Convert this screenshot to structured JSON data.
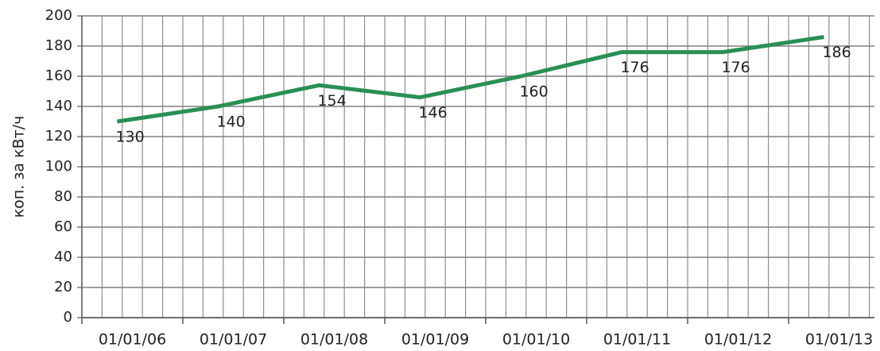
{
  "chart_data": {
    "type": "line",
    "y_label": "коп. за кВт/ч",
    "categories": [
      "01/01/06",
      "01/01/07",
      "01/01/08",
      "01/01/09",
      "01/01/10",
      "01/01/11",
      "01/01/12",
      "01/01/13"
    ],
    "series": [
      {
        "name": null,
        "color": "#2a8f55",
        "values": [
          130,
          140,
          154,
          146,
          160,
          176,
          176,
          186
        ]
      }
    ],
    "ylim": [
      0,
      200
    ],
    "yticks": [
      0,
      20,
      40,
      60,
      80,
      100,
      120,
      140,
      160,
      180,
      200
    ],
    "grid": true
  }
}
